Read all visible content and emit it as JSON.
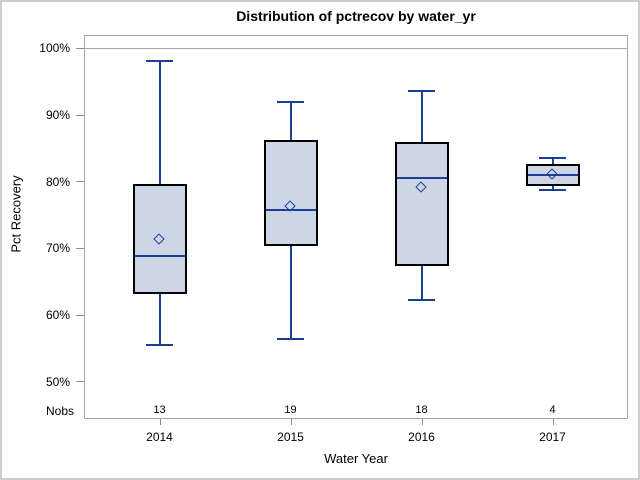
{
  "chart_data": {
    "type": "box",
    "title": "Distribution of pctrecov by water_yr",
    "xlabel": "Water Year",
    "ylabel": "Pct Recovery",
    "nobs_row_label": "Nobs",
    "categories": [
      "2014",
      "2015",
      "2016",
      "2017"
    ],
    "yticks": [
      50,
      60,
      70,
      80,
      90,
      100
    ],
    "ytick_labels": [
      "50%",
      "60%",
      "70%",
      "80%",
      "90%",
      "100%"
    ],
    "ylim": [
      44.4,
      102.0
    ],
    "refline": 100,
    "grid": "off",
    "legend": "none",
    "series": [
      {
        "category": "2014",
        "nobs": 13,
        "whisker_low": 55.5,
        "q1": 63.1,
        "median": 68.8,
        "mean": 71.3,
        "q3": 79.6,
        "whisker_high": 98.1
      },
      {
        "category": "2015",
        "nobs": 19,
        "whisker_low": 56.4,
        "q1": 70.4,
        "median": 75.7,
        "mean": 76.3,
        "q3": 86.2,
        "whisker_high": 92.0
      },
      {
        "category": "2016",
        "nobs": 18,
        "whisker_low": 62.3,
        "q1": 67.4,
        "median": 80.5,
        "mean": 79.2,
        "q3": 86.0,
        "whisker_high": 93.6
      },
      {
        "category": "2017",
        "nobs": 4,
        "whisker_low": 78.7,
        "q1": 79.4,
        "median": 81.0,
        "mean": 81.1,
        "q3": 82.7,
        "whisker_high": 83.6
      }
    ],
    "colors": {
      "box_fill": "#cdd6e5",
      "box_border": "#000000",
      "line_blue": "#1a3f94",
      "frame_gray": "#a6a6a6",
      "tick_gray": "#8f8f8f",
      "text": "#000000",
      "page_border": "#c9ced4"
    }
  }
}
